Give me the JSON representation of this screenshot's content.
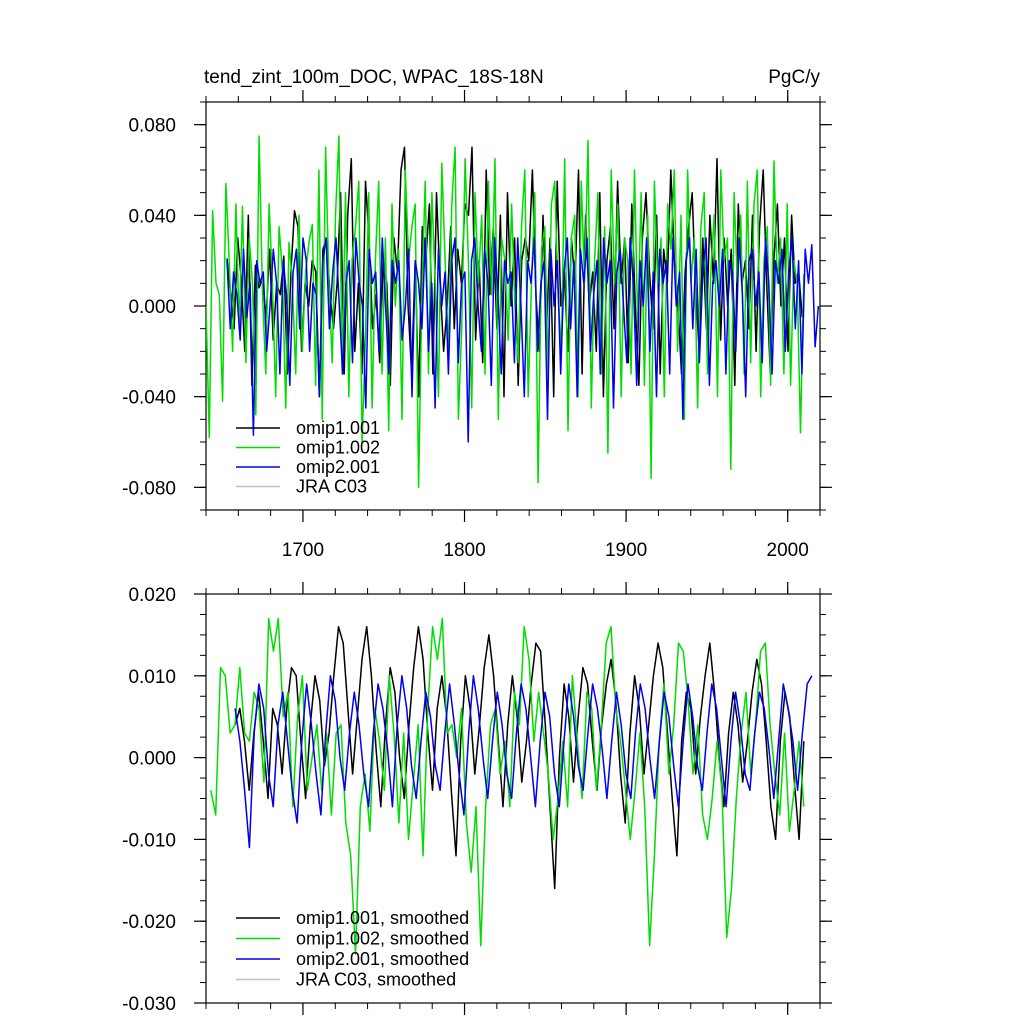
{
  "title_left": "tend_zint_100m_DOC, WPAC_18S-18N",
  "title_right": "PgC/y",
  "chart_data": [
    {
      "type": "line",
      "xlim": [
        1640,
        2020
      ],
      "ylim": [
        -0.09,
        0.09
      ],
      "x_ticks": [
        1700,
        1800,
        1900,
        2000
      ],
      "x_tick_labels": [
        "1700",
        "1800",
        "1900",
        "2000"
      ],
      "y_ticks": [
        0.08,
        0.04,
        0.0,
        -0.04,
        -0.08
      ],
      "y_tick_labels": [
        "0.080",
        "0.040",
        "0.000",
        "-0.040",
        "-0.080"
      ],
      "legend": [
        "omip1.001",
        "omip1.002",
        "omip2.001",
        "JRA C03"
      ],
      "legend_position": "bottom-left",
      "series": [
        {
          "name": "omip1.001",
          "color": "#000000",
          "x_start": 1653,
          "x_end": 2009,
          "values": [
            0.021,
            0.005,
            -0.01,
            0.03,
            0.012,
            -0.02,
            0.04,
            -0.035,
            0.018,
            0.008,
            0.012,
            -0.005,
            0.025,
            -0.015,
            0.01,
            0.005,
            0.022,
            -0.03,
            0.015,
            0.042,
            0.035,
            -0.02,
            0.01,
            0.0,
            0.02,
            0.015,
            -0.04,
            0.025,
            0.03,
            0.005,
            -0.01,
            0.01,
            0.05,
            -0.03,
            0.04,
            0.065,
            -0.02,
            0.01,
            -0.03,
            0.055,
            0.03,
            -0.01,
            0.005,
            -0.025,
            0.02,
            0.01,
            -0.035,
            0.03,
            0.015,
            0.06,
            0.07,
            0.0,
            -0.03,
            0.02,
            -0.04,
            0.035,
            0.02,
            0.045,
            -0.03,
            0.05,
            0.01,
            -0.02,
            0.0,
            0.035,
            -0.01,
            0.025,
            0.01,
            0.045,
            0.04,
            0.07,
            -0.015,
            0.02,
            -0.025,
            0.06,
            0.005,
            0.035,
            -0.01,
            0.04,
            -0.04,
            0.05,
            0.0,
            0.03,
            -0.035,
            0.02,
            0.03,
            0.02,
            0.06,
            0.005,
            -0.02,
            0.04,
            -0.01,
            0.03,
            -0.04,
            0.055,
            0.0,
            0.015,
            -0.02,
            0.03,
            0.01,
            0.06,
            -0.03,
            0.04,
            0.0,
            0.015,
            -0.02,
            0.05,
            -0.04,
            0.02,
            0.035,
            -0.01,
            0.055,
            0.01,
            0.03,
            -0.025,
            0.045,
            0.0,
            -0.035,
            0.03,
            0.05,
            0.015,
            -0.01,
            0.04,
            -0.03,
            0.025,
            0.01,
            0.06,
            0.02,
            0.0,
            -0.03,
            0.015,
            0.035,
            0.05,
            0.005,
            -0.02,
            0.03,
            -0.01,
            0.04,
            0.01,
            0.065,
            -0.015,
            0.03,
            0.0,
            0.025,
            -0.035,
            0.045,
            0.01,
            0.02,
            -0.01,
            0.04,
            -0.02,
            0.035,
            0.06,
            0.01,
            -0.03,
            0.02,
            0.045,
            0.0,
            0.03,
            -0.02,
            0.04,
            0.01,
            0.015,
            -0.005
          ]
        },
        {
          "name": "omip1.002",
          "color": "#00dd00",
          "x_start": 1640,
          "x_end": 2010,
          "values": [
            0.0,
            -0.058,
            0.042,
            0.01,
            0.005,
            -0.042,
            0.054,
            0.02,
            -0.02,
            0.045,
            -0.01,
            0.044,
            -0.025,
            0.03,
            0.01,
            -0.048,
            0.075,
            0.005,
            -0.03,
            0.045,
            0.01,
            -0.04,
            0.035,
            0.015,
            -0.045,
            0.028,
            0.01,
            -0.03,
            0.04,
            -0.02,
            0.015,
            0.028,
            0.036,
            -0.035,
            0.06,
            -0.05,
            0.07,
            0.01,
            -0.025,
            0.04,
            0.075,
            -0.03,
            0.05,
            -0.04,
            0.02,
            0.035,
            0.055,
            -0.06,
            -0.015,
            0.05,
            -0.045,
            0.02,
            0.055,
            -0.03,
            0.03,
            -0.055,
            0.045,
            0.0,
            0.025,
            -0.05,
            0.06,
            0.02,
            0.035,
            0.045,
            -0.08,
            0.005,
            0.055,
            -0.03,
            0.05,
            0.01,
            -0.04,
            0.063,
            0.02,
            -0.02,
            0.045,
            0.07,
            -0.05,
            -0.01,
            0.065,
            0.02,
            -0.045,
            0.05,
            0.01,
            0.04,
            -0.03,
            0.055,
            0.005,
            0.065,
            -0.05,
            0.03,
            0.02,
            -0.015,
            0.045,
            0.0,
            -0.025,
            0.035,
            0.06,
            -0.04,
            0.01,
            0.05,
            -0.078,
            0.025,
            0.035,
            -0.03,
            0.045,
            0.055,
            0.005,
            -0.02,
            0.065,
            -0.055,
            0.03,
            0.04,
            -0.04,
            0.055,
            0.01,
            0.073,
            -0.045,
            0.02,
            0.05,
            -0.03,
            0.035,
            -0.065,
            0.06,
            0.01,
            0.045,
            -0.04,
            0.03,
            0.02,
            -0.03,
            0.06,
            -0.01,
            0.05,
            -0.035,
            0.04,
            -0.076,
            0.055,
            0.01,
            0.03,
            -0.04,
            0.045,
            0.025,
            0.06,
            -0.02,
            0.04,
            -0.05,
            0.06,
            0.01,
            0.03,
            -0.045,
            0.035,
            0.05,
            -0.03,
            0.015,
            0.04,
            -0.04,
            0.06,
            0.02,
            0.03,
            -0.072,
            0.05,
            0.01,
            0.04,
            -0.03,
            0.055,
            -0.025,
            0.045,
            0.06,
            -0.04,
            0.02,
            0.035,
            -0.035,
            0.064,
            0.01,
            0.03,
            -0.03,
            0.045,
            -0.035,
            0.02,
            0.01,
            -0.056,
            0.014
          ]
        },
        {
          "name": "omip2.001",
          "color": "#0000ee",
          "x_start": 1653,
          "x_end": 2019,
          "values": [
            0.02,
            -0.01,
            0.015,
            0.005,
            -0.015,
            0.025,
            -0.005,
            0.01,
            -0.057,
            0.02,
            0.01,
            0.015,
            -0.02,
            0.0,
            0.025,
            0.01,
            -0.03,
            0.02,
            0.005,
            -0.035,
            0.015,
            0.025,
            -0.01,
            0.03,
            0.02,
            -0.02,
            0.01,
            0.005,
            -0.04,
            0.02,
            0.03,
            -0.01,
            0.015,
            0.03,
            0.0,
            -0.03,
            0.01,
            0.02,
            -0.025,
            0.03,
            0.01,
            0.0,
            -0.045,
            0.025,
            0.01,
            0.015,
            -0.02,
            0.03,
            0.0,
            -0.03,
            0.02,
            0.01,
            0.02,
            -0.015,
            0.0,
            0.025,
            -0.04,
            0.02,
            0.01,
            -0.01,
            0.03,
            -0.02,
            0.01,
            -0.045,
            0.025,
            0.0,
            0.015,
            -0.03,
            0.02,
            0.03,
            -0.025,
            0.01,
            0.015,
            -0.06,
            0.02,
            0.03,
            0.0,
            -0.02,
            0.025,
            0.01,
            -0.035,
            0.03,
            0.005,
            -0.03,
            0.02,
            0.01,
            0.015,
            -0.025,
            0.03,
            0.0,
            -0.04,
            0.02,
            0.01,
            0.03,
            -0.02,
            0.01,
            0.02,
            -0.05,
            0.025,
            0.0,
            0.02,
            -0.03,
            0.015,
            0.03,
            -0.01,
            0.02,
            -0.04,
            0.025,
            0.01,
            0.03,
            -0.02,
            0.005,
            0.02,
            -0.03,
            0.03,
            0.01,
            0.02,
            -0.045,
            0.015,
            0.025,
            0.0,
            -0.025,
            0.03,
            0.01,
            -0.035,
            0.02,
            0.0,
            0.03,
            -0.02,
            0.015,
            -0.04,
            0.025,
            0.01,
            0.02,
            -0.03,
            0.03,
            0.0,
            0.015,
            -0.05,
            0.02,
            0.03,
            -0.01,
            0.025,
            -0.025,
            0.015,
            0.03,
            -0.035,
            0.01,
            0.02,
            0.0,
            0.025,
            -0.03,
            0.02,
            0.015,
            -0.02,
            0.03,
            0.005,
            -0.04,
            0.02,
            0.025,
            0.0,
            0.015,
            -0.025,
            0.03,
            0.01,
            -0.03,
            0.02,
            0.01,
            0.025,
            -0.02,
            0.015,
            0.03,
            -0.01,
            0.02,
            -0.03,
            0.025,
            0.01,
            0.027,
            -0.018,
            0.0
          ]
        },
        {
          "name": "JRA C03",
          "color": "#c0c0c0",
          "values": []
        }
      ]
    },
    {
      "type": "line",
      "xlim": [
        1640,
        2020
      ],
      "ylim": [
        -0.03,
        0.02
      ],
      "x_ticks": [
        1700,
        1800,
        1900,
        2000
      ],
      "y_ticks": [
        0.02,
        0.01,
        0.0,
        -0.01,
        -0.02,
        -0.03
      ],
      "y_tick_labels": [
        "0.020",
        "0.010",
        "0.000",
        "-0.010",
        "-0.020",
        "-0.030"
      ],
      "legend": [
        "omip1.001, smoothed",
        "omip1.002, smoothed",
        "omip2.001, smoothed",
        "JRA C03, smoothed"
      ],
      "legend_position": "bottom-left",
      "series": [
        {
          "name": "omip1.001, smoothed",
          "color": "#000000",
          "x_start": 1658,
          "x_end": 2010,
          "values": [
            0.004,
            0.006,
            0.002,
            -0.004,
            0.003,
            0.008,
            0.002,
            -0.005,
            0.006,
            0.004,
            -0.002,
            0.006,
            0.011,
            0.01,
            0.002,
            -0.005,
            0.004,
            0.01,
            0.007,
            -0.001,
            0.003,
            0.01,
            0.016,
            0.014,
            0.006,
            -0.002,
            0.005,
            0.012,
            0.016,
            0.01,
            0.001,
            -0.006,
            0.004,
            0.011,
            0.008,
            0.0,
            -0.005,
            0.004,
            0.011,
            0.016,
            0.012,
            0.003,
            -0.004,
            0.006,
            0.01,
            0.005,
            -0.004,
            -0.012,
            0.002,
            0.01,
            0.006,
            -0.002,
            0.004,
            0.011,
            0.015,
            0.01,
            0.002,
            -0.006,
            0.004,
            0.01,
            0.005,
            -0.003,
            0.002,
            0.009,
            0.014,
            0.013,
            0.004,
            -0.006,
            -0.016,
            0.0,
            0.009,
            0.005,
            -0.003,
            0.005,
            0.011,
            0.009,
            0.002,
            -0.004,
            0.004,
            0.009,
            0.012,
            0.007,
            -0.002,
            -0.008,
            0.003,
            0.01,
            0.006,
            -0.002,
            0.004,
            0.01,
            0.014,
            0.011,
            0.003,
            -0.005,
            -0.012,
            0.002,
            0.008,
            0.006,
            -0.002,
            0.005,
            0.01,
            0.014,
            0.008,
            0.0,
            -0.006,
            0.003,
            0.008,
            0.004,
            -0.003,
            0.002,
            0.008,
            0.012,
            0.009,
            0.002,
            -0.006,
            -0.01,
            0.002,
            0.008,
            0.005,
            -0.003,
            -0.01,
            0.002
          ]
        },
        {
          "name": "omip1.002, smoothed",
          "color": "#00dd00",
          "x_start": 1643,
          "x_end": 2010,
          "values": [
            -0.004,
            -0.007,
            0.011,
            0.01,
            0.003,
            0.004,
            0.011,
            0.003,
            0.002,
            0.008,
            0.006,
            -0.003,
            0.017,
            0.013,
            0.017,
            0.005,
            0.008,
            -0.006,
            0.005,
            0.01,
            -0.004,
            0.0,
            0.004,
            -0.004,
            0.003,
            -0.007,
            0.003,
            0.004,
            -0.008,
            -0.012,
            -0.024,
            -0.006,
            -0.002,
            -0.009,
            0.006,
            0.002,
            -0.004,
            0.01,
            0.003,
            -0.008,
            0.003,
            -0.01,
            -0.003,
            0.004,
            -0.012,
            0.006,
            0.016,
            0.012,
            0.017,
            0.003,
            0.004,
            0.0,
            0.006,
            -0.008,
            -0.014,
            -0.006,
            -0.023,
            -0.006,
            0.004,
            0.006,
            -0.002,
            0.002,
            -0.006,
            0.008,
            0.004,
            0.016,
            0.012,
            0.002,
            0.008,
            0.003,
            -0.002,
            -0.01,
            -0.005,
            0.002,
            -0.006,
            0.01,
            0.002,
            -0.005,
            0.008,
            0.006,
            -0.004,
            0.004,
            0.014,
            0.016,
            0.006,
            0.002,
            -0.004,
            -0.01,
            -0.004,
            0.003,
            -0.006,
            -0.023,
            -0.012,
            0.002,
            0.009,
            -0.002,
            0.004,
            0.014,
            0.013,
            0.007,
            -0.002,
            0.004,
            -0.007,
            -0.01,
            -0.005,
            0.002,
            -0.004,
            -0.022,
            -0.016,
            -0.005,
            0.003,
            0.008,
            -0.002,
            0.004,
            0.013,
            0.014,
            0.004,
            -0.002,
            -0.007,
            0.003,
            -0.009,
            -0.004,
            0.002,
            -0.006
          ]
        },
        {
          "name": "omip2.001, smoothed",
          "color": "#0000ee",
          "x_start": 1658,
          "x_end": 2015,
          "values": [
            0.006,
            0.002,
            -0.004,
            -0.011,
            0.003,
            0.009,
            0.006,
            -0.002,
            -0.006,
            0.004,
            0.008,
            0.002,
            -0.004,
            -0.008,
            0.002,
            0.009,
            0.004,
            -0.002,
            -0.007,
            0.003,
            0.01,
            0.007,
            0.0,
            -0.004,
            0.003,
            0.008,
            0.004,
            -0.002,
            -0.006,
            0.003,
            0.009,
            0.006,
            0.001,
            -0.006,
            0.004,
            0.01,
            0.006,
            -0.001,
            -0.005,
            0.002,
            0.008,
            0.005,
            -0.001,
            -0.004,
            0.003,
            0.009,
            0.004,
            -0.002,
            -0.007,
            0.003,
            0.01,
            0.006,
            0.0,
            -0.005,
            0.002,
            0.008,
            0.004,
            -0.002,
            -0.005,
            0.003,
            0.009,
            0.006,
            0.0,
            -0.006,
            0.002,
            0.008,
            0.005,
            -0.002,
            -0.006,
            0.002,
            0.009,
            0.005,
            -0.001,
            -0.004,
            0.003,
            0.009,
            0.006,
            0.001,
            -0.005,
            0.002,
            0.008,
            0.004,
            -0.002,
            -0.005,
            0.003,
            0.009,
            0.006,
            0.0,
            -0.005,
            0.002,
            0.008,
            0.005,
            -0.001,
            -0.006,
            0.002,
            0.009,
            0.005,
            -0.001,
            -0.004,
            0.003,
            0.009,
            0.006,
            0.0,
            -0.006,
            0.002,
            0.008,
            0.004,
            -0.002,
            -0.004,
            0.003,
            0.008,
            0.006,
            0.001,
            -0.005,
            0.002,
            0.009,
            0.006,
            0.002,
            -0.004,
            0.003,
            0.009,
            0.01
          ]
        },
        {
          "name": "JRA C03, smoothed",
          "color": "#c0c0c0",
          "values": []
        }
      ]
    }
  ]
}
